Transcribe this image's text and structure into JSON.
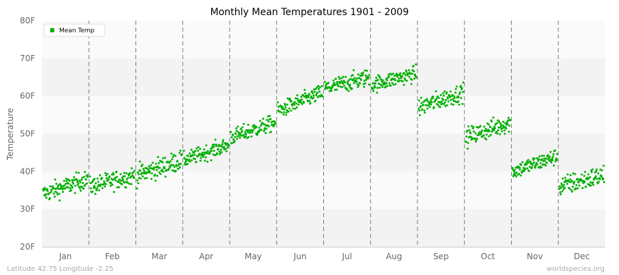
{
  "chart_data": {
    "type": "scatter",
    "title": "Monthly Mean Temperatures 1901 - 2009",
    "ylabel": "Temperature",
    "xlabel": "",
    "ylim": [
      20,
      80
    ],
    "yticks": [
      "20F",
      "30F",
      "40F",
      "50F",
      "60F",
      "70F",
      "80F"
    ],
    "categories": [
      "Jan",
      "Feb",
      "Mar",
      "Apr",
      "May",
      "Jun",
      "Jul",
      "Aug",
      "Sep",
      "Oct",
      "Nov",
      "Dec"
    ],
    "legend": {
      "position": "top-left",
      "label": "Mean Temp"
    },
    "grid": "horizontal bands, dashed vertical month separators",
    "series": [
      {
        "name": "Mean Temp",
        "color": "#00b000",
        "monthly_summary": [
          {
            "month": "Jan",
            "min": 29.5,
            "max": 42,
            "mean_start": 34,
            "mean_end": 38
          },
          {
            "month": "Feb",
            "min": 30.5,
            "max": 43,
            "mean_start": 36,
            "mean_end": 39
          },
          {
            "month": "Mar",
            "min": 35,
            "max": 49,
            "mean_start": 39,
            "mean_end": 43
          },
          {
            "month": "Apr",
            "min": 39.5,
            "max": 50,
            "mean_start": 43,
            "mean_end": 47
          },
          {
            "month": "May",
            "min": 46,
            "max": 57,
            "mean_start": 49,
            "mean_end": 53
          },
          {
            "month": "Jun",
            "min": 53,
            "max": 64,
            "mean_start": 56,
            "mean_end": 61
          },
          {
            "month": "Jul",
            "min": 59,
            "max": 71,
            "mean_start": 62,
            "mean_end": 65
          },
          {
            "month": "Aug",
            "min": 59,
            "max": 70,
            "mean_start": 63,
            "mean_end": 66
          },
          {
            "month": "Sep",
            "min": 53,
            "max": 65.5,
            "mean_start": 57,
            "mean_end": 61
          },
          {
            "month": "Oct",
            "min": 45,
            "max": 58,
            "mean_start": 49,
            "mean_end": 53
          },
          {
            "month": "Nov",
            "min": 37,
            "max": 48,
            "mean_start": 40,
            "mean_end": 44
          },
          {
            "month": "Dec",
            "min": 30.5,
            "max": 44.5,
            "mean_start": 36,
            "mean_end": 39
          }
        ],
        "points_per_month": 109
      }
    ]
  },
  "footer": {
    "left": "Latitude 42.75 Longitude -2.25",
    "right": "worldspecies.org"
  }
}
